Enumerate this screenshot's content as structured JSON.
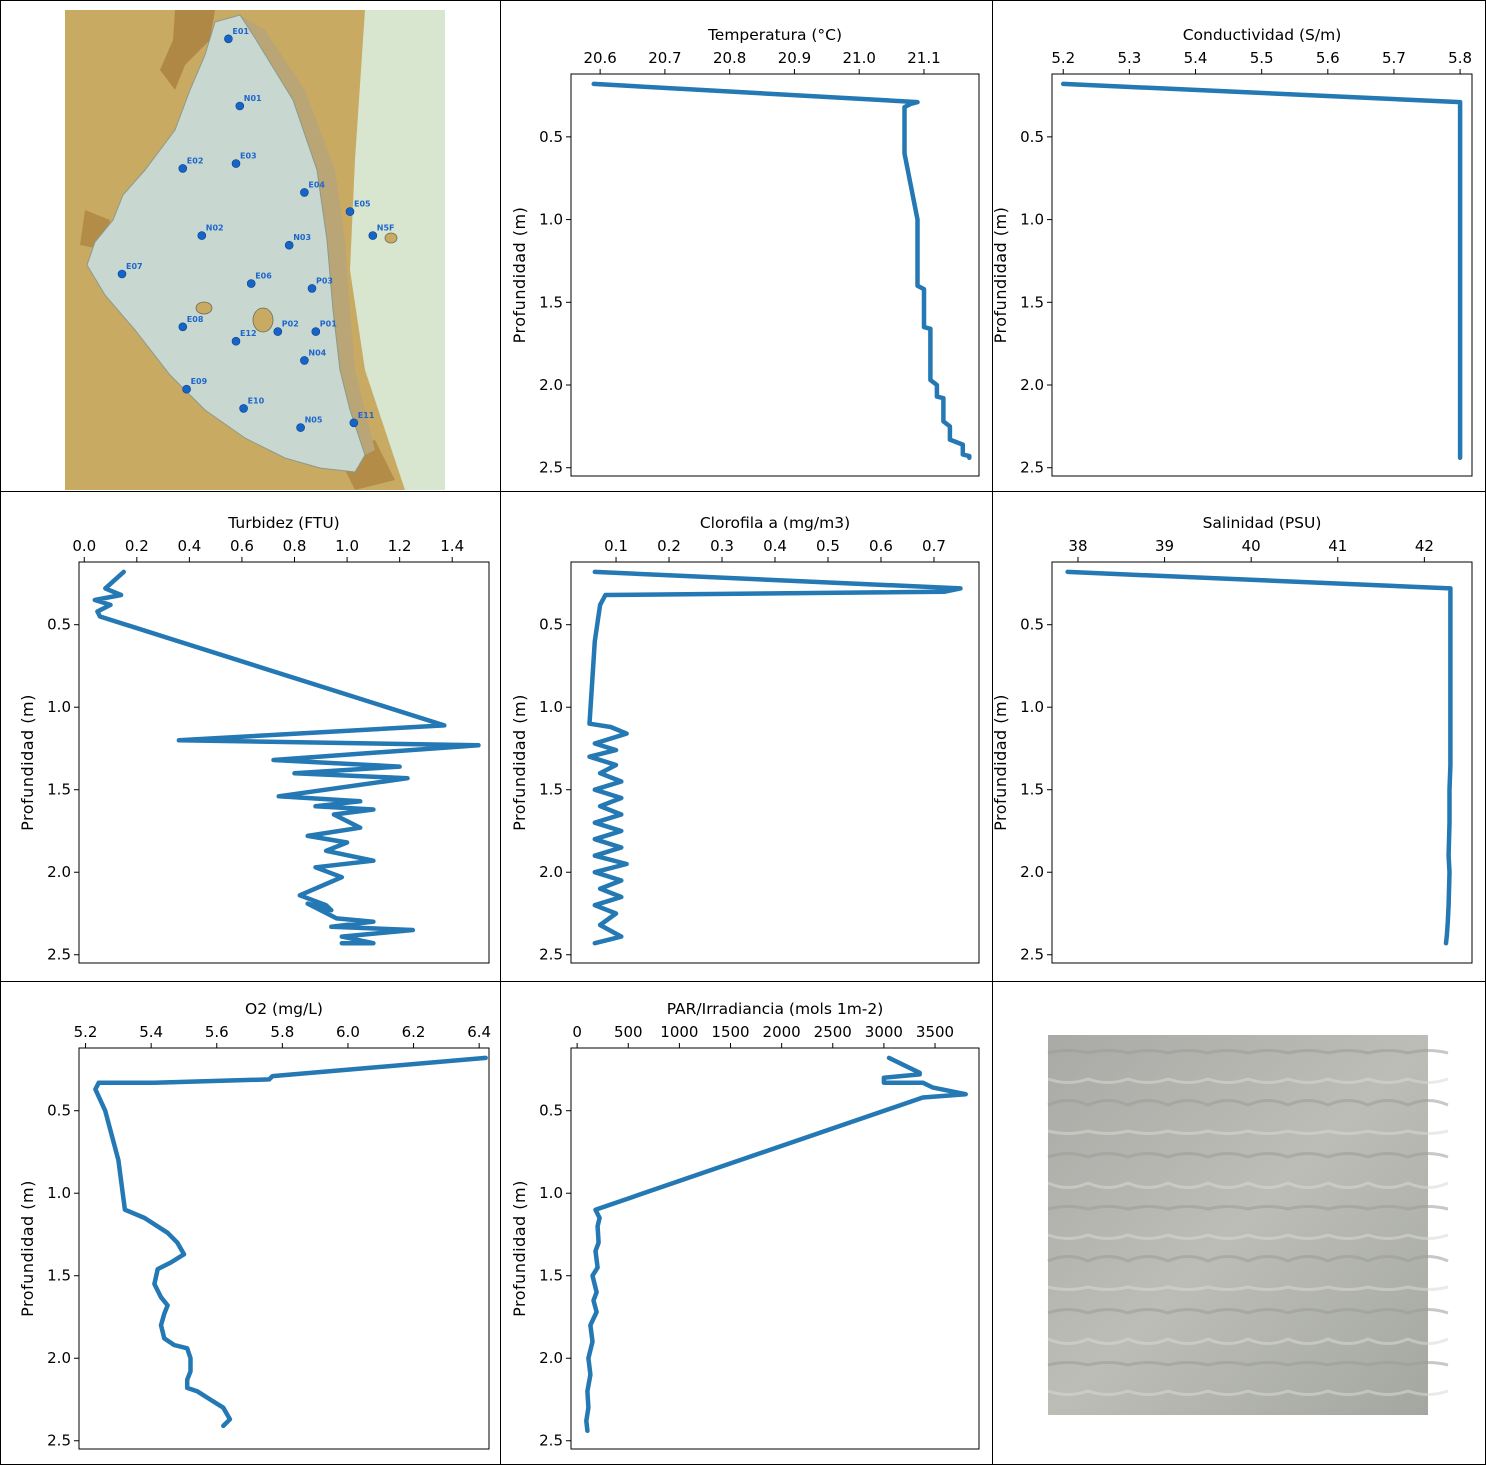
{
  "colors": {
    "line": "#2478b4",
    "map_land": "#c9aa63",
    "map_land_dark": "#a9803d",
    "map_water": "#c8d8d0",
    "map_sea": "#d9e6cf",
    "station": "#1565c9",
    "water_photo": "#bdbdb7"
  },
  "map": {
    "stations": [
      {
        "label": "E01",
        "lon": 0.43,
        "lat": 0.06
      },
      {
        "label": "N01",
        "lon": 0.46,
        "lat": 0.2
      },
      {
        "label": "E02",
        "lon": 0.31,
        "lat": 0.33
      },
      {
        "label": "E03",
        "lon": 0.45,
        "lat": 0.32
      },
      {
        "label": "E04",
        "lon": 0.63,
        "lat": 0.38
      },
      {
        "label": "E05",
        "lon": 0.75,
        "lat": 0.42
      },
      {
        "label": "N5F",
        "lon": 0.81,
        "lat": 0.47
      },
      {
        "label": "N02",
        "lon": 0.36,
        "lat": 0.47
      },
      {
        "label": "N03",
        "lon": 0.59,
        "lat": 0.49
      },
      {
        "label": "E07",
        "lon": 0.15,
        "lat": 0.55
      },
      {
        "label": "E06",
        "lon": 0.49,
        "lat": 0.57
      },
      {
        "label": "P03",
        "lon": 0.65,
        "lat": 0.58
      },
      {
        "label": "E08",
        "lon": 0.31,
        "lat": 0.66
      },
      {
        "label": "E12",
        "lon": 0.45,
        "lat": 0.69
      },
      {
        "label": "P02",
        "lon": 0.56,
        "lat": 0.67
      },
      {
        "label": "P01",
        "lon": 0.66,
        "lat": 0.67
      },
      {
        "label": "N04",
        "lon": 0.63,
        "lat": 0.73
      },
      {
        "label": "E09",
        "lon": 0.32,
        "lat": 0.79
      },
      {
        "label": "E10",
        "lon": 0.47,
        "lat": 0.83
      },
      {
        "label": "N05",
        "lon": 0.62,
        "lat": 0.87
      },
      {
        "label": "E11",
        "lon": 0.76,
        "lat": 0.86
      }
    ]
  },
  "chart_data": [
    {
      "type": "line",
      "title": "Temperatura (°C)",
      "ylabel": "Profundidad (m)",
      "xlim": [
        20.555,
        21.185
      ],
      "ylim": [
        2.55,
        0.12
      ],
      "xticks": [
        20.6,
        20.7,
        20.8,
        20.9,
        21.0,
        21.1
      ],
      "xtick_labels": [
        "20.6",
        "20.7",
        "20.8",
        "20.9",
        "21.0",
        "21.1"
      ],
      "yticks": [
        0.5,
        1.0,
        1.5,
        2.0,
        2.5
      ],
      "ytick_labels": [
        "0.5",
        "1.0",
        "1.5",
        "2.0",
        "2.5"
      ],
      "x": [
        20.59,
        21.09,
        21.08,
        21.07,
        21.07,
        21.08,
        21.09,
        21.09,
        21.09,
        21.1,
        21.1,
        21.11,
        21.11,
        21.12,
        21.12,
        21.13,
        21.13,
        21.14,
        21.14,
        21.16,
        21.16,
        21.17,
        21.17
      ],
      "y": [
        0.18,
        0.29,
        0.3,
        0.32,
        0.6,
        0.8,
        1.0,
        1.28,
        1.4,
        1.42,
        1.65,
        1.66,
        1.97,
        2.0,
        2.07,
        2.08,
        2.22,
        2.25,
        2.33,
        2.36,
        2.42,
        2.43,
        2.44
      ]
    },
    {
      "type": "line",
      "title": "Conductividad (S/m)",
      "ylabel": "Profundidad (m)",
      "xlim": [
        5.183,
        5.818
      ],
      "ylim": [
        2.55,
        0.12
      ],
      "xticks": [
        5.2,
        5.3,
        5.4,
        5.5,
        5.6,
        5.7,
        5.8
      ],
      "xtick_labels": [
        "5.2",
        "5.3",
        "5.4",
        "5.5",
        "5.6",
        "5.7",
        "5.8"
      ],
      "yticks": [
        0.5,
        1.0,
        1.5,
        2.0,
        2.5
      ],
      "ytick_labels": [
        "0.5",
        "1.0",
        "1.5",
        "2.0",
        "2.5"
      ],
      "x": [
        5.2,
        5.8,
        5.8,
        5.8
      ],
      "y": [
        0.18,
        0.29,
        1.5,
        2.44
      ]
    },
    {
      "type": "line",
      "title": "Turbidez (FTU)",
      "ylabel": "Profundidad (m)",
      "xlim": [
        -0.02,
        1.54
      ],
      "ylim": [
        2.55,
        0.12
      ],
      "xticks": [
        0.0,
        0.2,
        0.4,
        0.6,
        0.8,
        1.0,
        1.2,
        1.4
      ],
      "xtick_labels": [
        "0.0",
        "0.2",
        "0.4",
        "0.6",
        "0.8",
        "1.0",
        "1.2",
        "1.4"
      ],
      "yticks": [
        0.5,
        1.0,
        1.5,
        2.0,
        2.5
      ],
      "ytick_labels": [
        "0.5",
        "1.0",
        "1.5",
        "2.0",
        "2.5"
      ],
      "x": [
        0.15,
        0.08,
        0.14,
        0.04,
        0.1,
        0.05,
        0.06,
        1.37,
        0.36,
        1.5,
        0.72,
        1.2,
        0.8,
        1.23,
        0.74,
        1.05,
        0.88,
        1.1,
        0.95,
        1.05,
        0.85,
        1.0,
        0.92,
        1.1,
        0.88,
        0.98,
        0.82,
        0.92,
        0.94,
        0.85,
        0.96,
        1.1,
        0.94,
        1.25,
        0.98,
        1.1,
        0.98
      ],
      "y": [
        0.18,
        0.28,
        0.32,
        0.35,
        0.38,
        0.42,
        0.45,
        1.11,
        1.2,
        1.23,
        1.32,
        1.36,
        1.4,
        1.43,
        1.54,
        1.57,
        1.6,
        1.62,
        1.65,
        1.73,
        1.78,
        1.82,
        1.87,
        1.93,
        1.97,
        2.03,
        2.14,
        2.2,
        2.23,
        2.19,
        2.28,
        2.3,
        2.33,
        2.35,
        2.39,
        2.43,
        2.43
      ]
    },
    {
      "type": "line",
      "title": "Clorofila a (mg/m3)",
      "ylabel": "Profundidad (m)",
      "xlim": [
        0.015,
        0.785
      ],
      "ylim": [
        2.55,
        0.12
      ],
      "xticks": [
        0.1,
        0.2,
        0.3,
        0.4,
        0.5,
        0.6,
        0.7
      ],
      "xtick_labels": [
        "0.1",
        "0.2",
        "0.3",
        "0.4",
        "0.5",
        "0.6",
        "0.7"
      ],
      "yticks": [
        0.5,
        1.0,
        1.5,
        2.0,
        2.5
      ],
      "ytick_labels": [
        "0.5",
        "1.0",
        "1.5",
        "2.0",
        "2.5"
      ],
      "x": [
        0.06,
        0.75,
        0.72,
        0.08,
        0.07,
        0.06,
        0.05,
        0.09,
        0.12,
        0.06,
        0.1,
        0.05,
        0.1,
        0.07,
        0.11,
        0.06,
        0.11,
        0.07,
        0.11,
        0.06,
        0.11,
        0.06,
        0.11,
        0.06,
        0.12,
        0.06,
        0.11,
        0.07,
        0.11,
        0.06,
        0.1,
        0.07,
        0.11,
        0.06
      ],
      "y": [
        0.18,
        0.28,
        0.3,
        0.32,
        0.38,
        0.6,
        1.1,
        1.12,
        1.16,
        1.22,
        1.26,
        1.3,
        1.35,
        1.4,
        1.45,
        1.5,
        1.55,
        1.6,
        1.65,
        1.7,
        1.75,
        1.8,
        1.85,
        1.9,
        1.95,
        2.0,
        2.05,
        2.1,
        2.15,
        2.2,
        2.25,
        2.32,
        2.39,
        2.43
      ]
    },
    {
      "type": "line",
      "title": "Salinidad (PSU)",
      "ylabel": "Profundidad (m)",
      "xlim": [
        37.7,
        42.55
      ],
      "ylim": [
        2.55,
        0.12
      ],
      "xticks": [
        38,
        39,
        40,
        41,
        42
      ],
      "xtick_labels": [
        "38",
        "39",
        "40",
        "41",
        "42"
      ],
      "yticks": [
        0.5,
        1.0,
        1.5,
        2.0,
        2.5
      ],
      "ytick_labels": [
        "0.5",
        "1.0",
        "1.5",
        "2.0",
        "2.5"
      ],
      "x": [
        37.88,
        42.3,
        42.3,
        42.29,
        42.29,
        42.28,
        42.29,
        42.28,
        42.27,
        42.26,
        42.25
      ],
      "y": [
        0.18,
        0.28,
        1.35,
        1.5,
        1.7,
        1.9,
        2.0,
        2.2,
        2.3,
        2.38,
        2.43
      ]
    },
    {
      "type": "line",
      "title": "O2 (mg/L)",
      "ylabel": "Profundidad (m)",
      "xlim": [
        5.18,
        6.43
      ],
      "ylim": [
        2.55,
        0.12
      ],
      "xticks": [
        5.2,
        5.4,
        5.6,
        5.8,
        6.0,
        6.2,
        6.4
      ],
      "xtick_labels": [
        "5.2",
        "5.4",
        "5.6",
        "5.8",
        "6.0",
        "6.2",
        "6.4"
      ],
      "yticks": [
        0.5,
        1.0,
        1.5,
        2.0,
        2.5
      ],
      "ytick_labels": [
        "0.5",
        "1.0",
        "1.5",
        "2.0",
        "2.5"
      ],
      "x": [
        6.42,
        5.77,
        5.76,
        5.41,
        5.24,
        5.23,
        5.26,
        5.3,
        5.32,
        5.38,
        5.45,
        5.48,
        5.5,
        5.46,
        5.42,
        5.41,
        5.43,
        5.45,
        5.44,
        5.43,
        5.44,
        5.47,
        5.51,
        5.52,
        5.52,
        5.51,
        5.51,
        5.54,
        5.58,
        5.62,
        5.64,
        5.62
      ],
      "y": [
        0.18,
        0.29,
        0.31,
        0.33,
        0.33,
        0.37,
        0.5,
        0.8,
        1.1,
        1.15,
        1.24,
        1.3,
        1.37,
        1.42,
        1.46,
        1.55,
        1.63,
        1.68,
        1.73,
        1.8,
        1.88,
        1.92,
        1.94,
        2.0,
        2.08,
        2.13,
        2.18,
        2.2,
        2.25,
        2.3,
        2.37,
        2.41
      ]
    },
    {
      "type": "line",
      "title": "PAR/Irradiancia (mols 1m-2)",
      "ylabel": "Profundidad (m)",
      "xlim": [
        -60,
        3930
      ],
      "ylim": [
        2.55,
        0.12
      ],
      "xticks": [
        0,
        500,
        1000,
        1500,
        2000,
        2500,
        3000,
        3500
      ],
      "xtick_labels": [
        "0",
        "500",
        "1000",
        "1500",
        "2000",
        "2500",
        "3000",
        "3500"
      ],
      "yticks": [
        0.5,
        1.0,
        1.5,
        2.0,
        2.5
      ],
      "ytick_labels": [
        "0.5",
        "1.0",
        "1.5",
        "2.0",
        "2.5"
      ],
      "x": [
        3050,
        3350,
        3350,
        3000,
        3000,
        3380,
        3480,
        3800,
        3380,
        180,
        220,
        200,
        210,
        180,
        200,
        150,
        190,
        160,
        190,
        130,
        150,
        110,
        130,
        100,
        110,
        90,
        100
      ],
      "y": [
        0.18,
        0.27,
        0.28,
        0.3,
        0.33,
        0.33,
        0.36,
        0.4,
        0.42,
        1.1,
        1.15,
        1.2,
        1.3,
        1.35,
        1.45,
        1.5,
        1.6,
        1.65,
        1.72,
        1.8,
        1.9,
        2.0,
        2.1,
        2.2,
        2.3,
        2.38,
        2.44
      ]
    }
  ]
}
